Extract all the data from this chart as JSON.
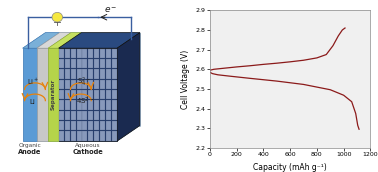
{
  "fig_width": 3.78,
  "fig_height": 1.72,
  "dpi": 100,
  "bg_color": "#ffffff",
  "plot_xlim": [
    0,
    1200
  ],
  "plot_ylim": [
    2.2,
    2.9
  ],
  "plot_xticks": [
    0,
    200,
    400,
    600,
    800,
    1000,
    1200
  ],
  "plot_yticks": [
    2.2,
    2.3,
    2.4,
    2.5,
    2.6,
    2.7,
    2.8,
    2.9
  ],
  "xlabel": "Capacity (mAh g⁻¹)",
  "ylabel": "Cell Voltage (V)",
  "curve_color": "#8B1A1A",
  "arrow_color": "#e8820a",
  "wire_color": "#3a5fa0",
  "label_font_size": 5.0,
  "tick_font_size": 4.5,
  "axis_label_font_size": 5.5,
  "cap_charge": [
    0,
    30,
    100,
    200,
    300,
    400,
    500,
    600,
    700,
    800,
    870,
    920,
    960,
    990,
    1010
  ],
  "v_charge": [
    2.595,
    2.6,
    2.605,
    2.612,
    2.618,
    2.625,
    2.631,
    2.638,
    2.646,
    2.658,
    2.675,
    2.72,
    2.77,
    2.8,
    2.81
  ],
  "cap_discharge": [
    0,
    20,
    60,
    150,
    300,
    500,
    700,
    900,
    1000,
    1060,
    1090,
    1105,
    1115
  ],
  "v_discharge": [
    2.585,
    2.578,
    2.572,
    2.565,
    2.554,
    2.54,
    2.523,
    2.496,
    2.468,
    2.435,
    2.375,
    2.315,
    2.295
  ]
}
